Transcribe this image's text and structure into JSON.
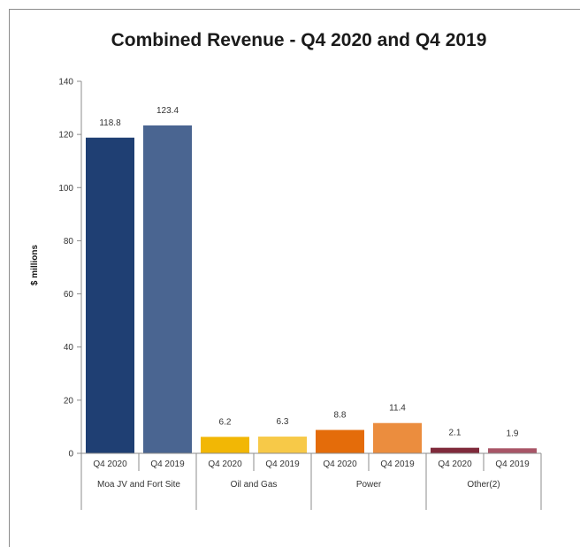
{
  "chart_data": {
    "type": "bar",
    "title": "Combined Revenue - Q4 2020 and Q4 2019",
    "ylabel": "$ millions",
    "xlabel": "",
    "ylim": [
      0,
      140
    ],
    "yticks": [
      0,
      20,
      40,
      60,
      80,
      100,
      120,
      140
    ],
    "grid": false,
    "legend": "none",
    "groups": [
      {
        "label": "Moa JV and Fort Site",
        "bars": [
          {
            "period": "Q4 2020",
            "value": 118.8,
            "label": "118.8",
            "color": "#1f3f73"
          },
          {
            "period": "Q4 2019",
            "value": 123.4,
            "label": "123.4",
            "color": "#4a6591"
          }
        ]
      },
      {
        "label": "Oil and Gas",
        "bars": [
          {
            "period": "Q4 2020",
            "value": 6.2,
            "label": "6.2",
            "color": "#f2b705"
          },
          {
            "period": "Q4 2019",
            "value": 6.3,
            "label": "6.3",
            "color": "#f7c948"
          }
        ]
      },
      {
        "label": "Power",
        "bars": [
          {
            "period": "Q4 2020",
            "value": 8.8,
            "label": "8.8",
            "color": "#e46c0a"
          },
          {
            "period": "Q4 2019",
            "value": 11.4,
            "label": "11.4",
            "color": "#eb8d3e"
          }
        ]
      },
      {
        "label": "Other(2)",
        "bars": [
          {
            "period": "Q4 2020",
            "value": 2.1,
            "label": "2.1",
            "color": "#7f2a3b"
          },
          {
            "period": "Q4 2019",
            "value": 1.9,
            "label": "1.9",
            "color": "#a85567"
          }
        ]
      }
    ]
  }
}
